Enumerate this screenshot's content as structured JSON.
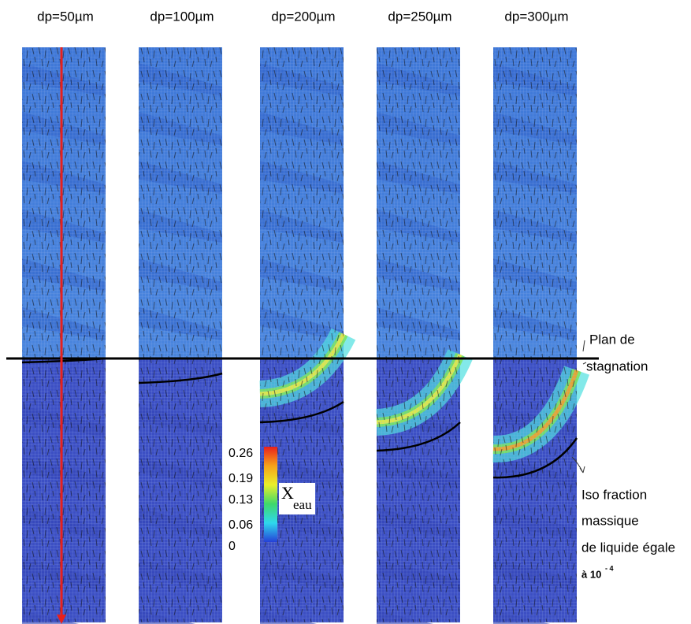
{
  "panels": [
    {
      "label": "dp=50µm"
    },
    {
      "label": "dp=100µm"
    },
    {
      "label": "dp=200µm"
    },
    {
      "label": "dp=250µm"
    },
    {
      "label": "dp=300µm"
    }
  ],
  "colorbar": {
    "label": "X",
    "label_sub": "eau",
    "ticks": [
      0.26,
      0.19,
      0.13,
      0.06,
      0
    ]
  },
  "annotations": {
    "stagnation": [
      "Plan de",
      "stagnation"
    ],
    "iso": [
      "Iso fraction",
      "massique",
      "de liquide égale",
      "à 10"
    ],
    "iso_exp": "- 4"
  }
}
